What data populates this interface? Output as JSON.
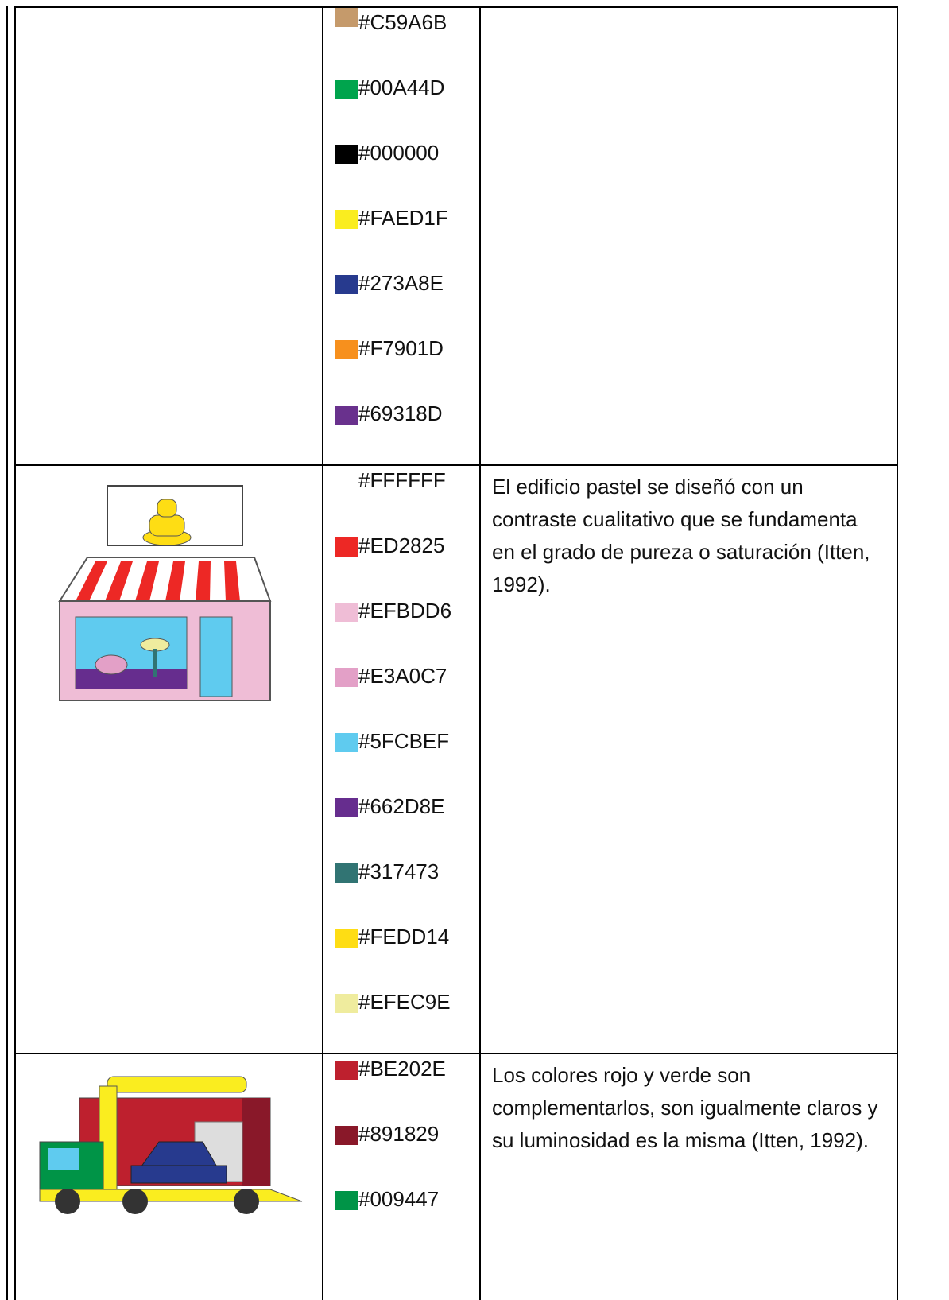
{
  "table": {
    "rows": [
      {
        "colors": [
          "#C59A6B",
          "#00A44D",
          "#000000",
          "#FAED1F",
          "#273A8E",
          "#F7901D",
          "#69318D"
        ]
      },
      {
        "colors": [
          "#FFFFFF",
          "#ED2825",
          "#EFBDD6",
          "#E3A0C7",
          "#5FCBEF",
          "#662D8E",
          "#317473",
          "#FEDD14",
          "#EFEC9E"
        ],
        "description": "El edificio pastel se diseñó con un contraste cualitativo que se fundamenta en el grado de pureza o saturación (Itten, 1992)."
      },
      {
        "colors": [
          "#BE202E",
          "#891829",
          "#009447"
        ],
        "description": "Los colores rojo y verde son complementarlos, son igualmente claros y su luminosidad es la misma (Itten, 1992)."
      }
    ]
  }
}
